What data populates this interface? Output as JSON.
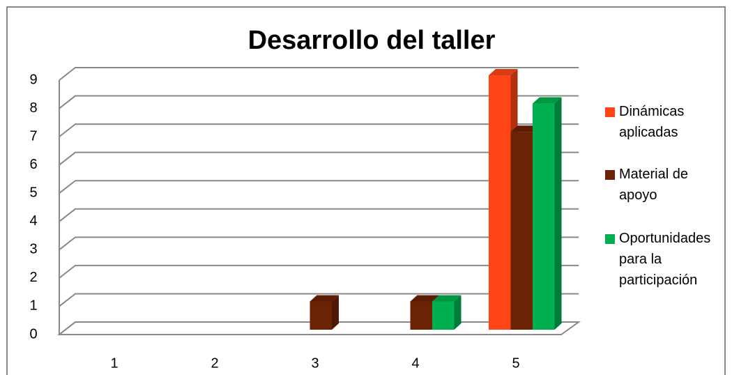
{
  "chart_data": {
    "type": "bar3d",
    "title": "Desarrollo del taller",
    "categories": [
      "1",
      "2",
      "3",
      "4",
      "5"
    ],
    "series": [
      {
        "name": "Dinámicas aplicadas",
        "color": "#ff4515",
        "values": [
          0,
          0,
          0,
          0,
          9
        ]
      },
      {
        "name": "Material de apoyo",
        "color": "#6b2306",
        "values": [
          0,
          0,
          1,
          1,
          7
        ]
      },
      {
        "name": "Oportunidades para la participación",
        "color": "#00b050",
        "values": [
          0,
          0,
          0,
          1,
          8
        ]
      }
    ],
    "ylim": [
      0,
      9
    ],
    "yticks": [
      0,
      1,
      2,
      3,
      4,
      5,
      6,
      7,
      8,
      9
    ],
    "grid": true,
    "legend": "right"
  }
}
